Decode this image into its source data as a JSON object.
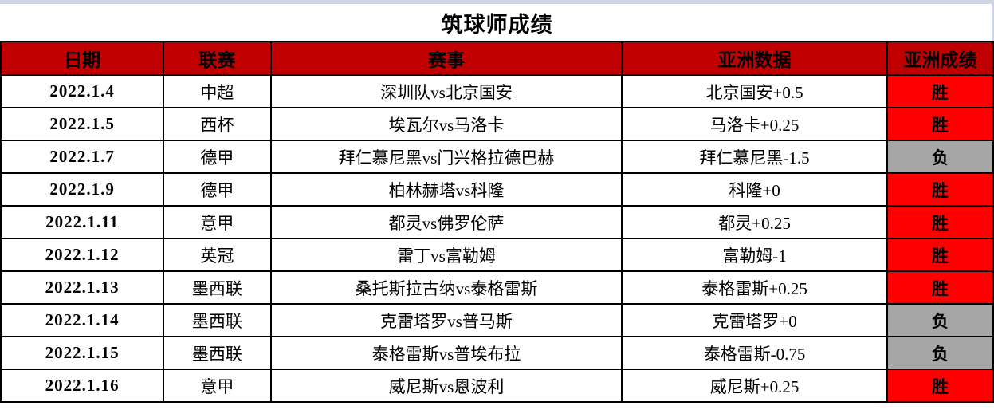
{
  "title": "筑球师成绩",
  "table": {
    "headers": [
      "日期",
      "联赛",
      "赛事",
      "亚洲数据",
      "亚洲成绩"
    ],
    "rows": [
      {
        "date": "2022.1.4",
        "league": "中超",
        "match": "深圳队vs北京国安",
        "asian_data": "北京国安+0.5",
        "result": "胜",
        "result_type": "win"
      },
      {
        "date": "2022.1.5",
        "league": "西杯",
        "match": "埃瓦尔vs马洛卡",
        "asian_data": "马洛卡+0.25",
        "result": "胜",
        "result_type": "win"
      },
      {
        "date": "2022.1.7",
        "league": "德甲",
        "match": "拜仁慕尼黑vs门兴格拉德巴赫",
        "asian_data": "拜仁慕尼黑-1.5",
        "result": "负",
        "result_type": "loss"
      },
      {
        "date": "2022.1.9",
        "league": "德甲",
        "match": "柏林赫塔vs科隆",
        "asian_data": "科隆+0",
        "result": "胜",
        "result_type": "win"
      },
      {
        "date": "2022.1.11",
        "league": "意甲",
        "match": "都灵vs佛罗伦萨",
        "asian_data": "都灵+0.25",
        "result": "胜",
        "result_type": "win"
      },
      {
        "date": "2022.1.12",
        "league": "英冠",
        "match": "雷丁vs富勒姆",
        "asian_data": "富勒姆-1",
        "result": "胜",
        "result_type": "win"
      },
      {
        "date": "2022.1.13",
        "league": "墨西联",
        "match": "桑托斯拉古纳vs泰格雷斯",
        "asian_data": "泰格雷斯+0.25",
        "result": "胜",
        "result_type": "win"
      },
      {
        "date": "2022.1.14",
        "league": "墨西联",
        "match": "克雷塔罗vs普马斯",
        "asian_data": "克雷塔罗+0",
        "result": "负",
        "result_type": "loss"
      },
      {
        "date": "2022.1.15",
        "league": "墨西联",
        "match": "泰格雷斯vs普埃布拉",
        "asian_data": "泰格雷斯-0.75",
        "result": "负",
        "result_type": "loss"
      },
      {
        "date": "2022.1.16",
        "league": "意甲",
        "match": "威尼斯vs恩波利",
        "asian_data": "威尼斯+0.25",
        "result": "胜",
        "result_type": "win"
      }
    ]
  },
  "colors": {
    "header_bg": "#C00000",
    "win_bg": "#FF0000",
    "loss_bg": "#A6A6A6",
    "border": "#000000",
    "top_strip": "#CFD5E3"
  }
}
